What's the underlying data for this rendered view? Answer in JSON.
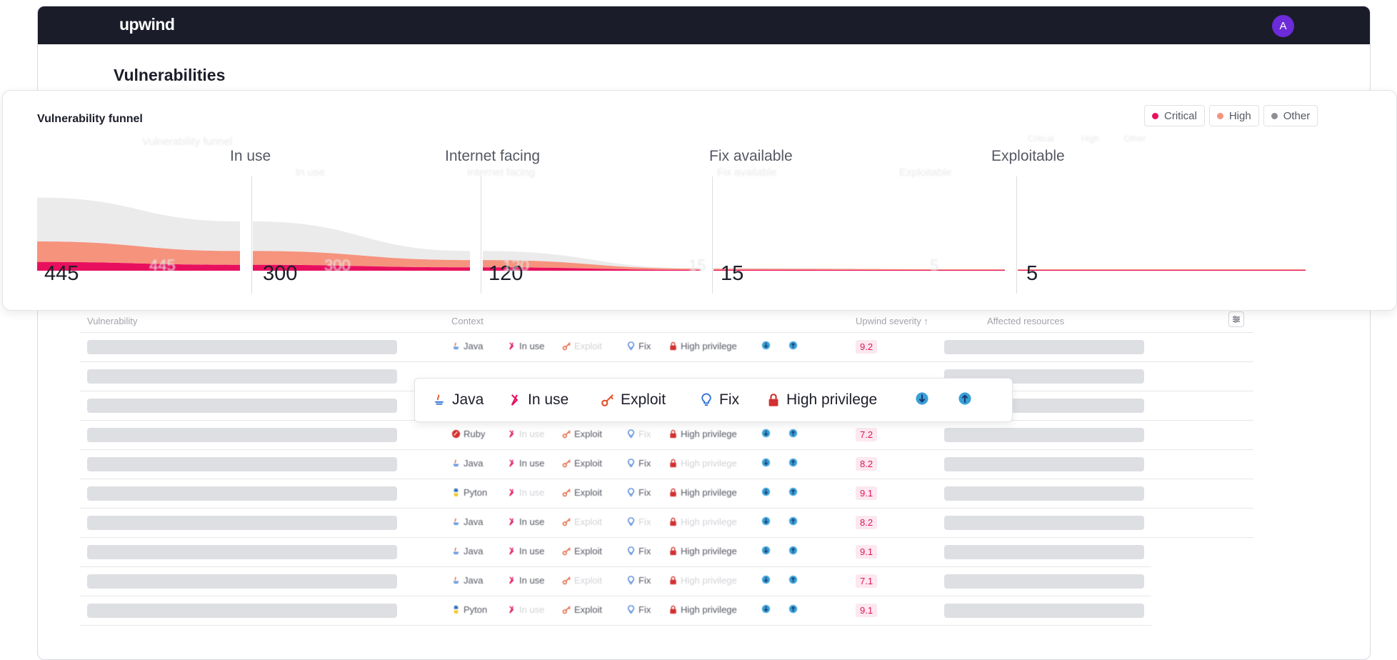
{
  "app": {
    "logo": "upwind",
    "avatar_initial": "A",
    "page_title": "Vulnerabilities"
  },
  "funnel": {
    "title": "Vulnerability funnel",
    "ghost_title": "Vulnerability funnel",
    "legend": [
      {
        "label": "Critical",
        "color": "#e8105e"
      },
      {
        "label": "High",
        "color": "#f6937d"
      },
      {
        "label": "Other",
        "color": "#8e8f96"
      }
    ],
    "stages": [
      {
        "label": "",
        "count": "445"
      },
      {
        "label": "In use",
        "count": "300"
      },
      {
        "label": "Internet facing",
        "count": "120"
      },
      {
        "label": "Fix available",
        "count": "15"
      },
      {
        "label": "Exploitable",
        "count": "5"
      }
    ],
    "ghost_legend": [
      "Critical",
      "High",
      "Other"
    ],
    "ghost_stages": [
      "In use",
      "Internet facing",
      "Fix available",
      "Exploitable"
    ],
    "ghost_counts": [
      "445",
      "300",
      "120",
      "15",
      "5"
    ]
  },
  "table": {
    "headers": {
      "vulnerability": "Vulnerability",
      "context": "Context",
      "severity": "Upwind severity ↑",
      "resources": "Affected resources"
    },
    "rows": [
      {
        "lang": "Java",
        "lang_icon": "java-icon",
        "in_use": true,
        "exploit": false,
        "fix": true,
        "priv": true,
        "net1": true,
        "net2": false,
        "severity": "9.2"
      },
      {
        "lang": "",
        "lang_icon": "",
        "in_use": false,
        "exploit": false,
        "fix": false,
        "priv": false,
        "net1": false,
        "net2": false,
        "severity": ""
      },
      {
        "lang": "",
        "lang_icon": "",
        "in_use": false,
        "exploit": false,
        "fix": false,
        "priv": false,
        "net1": false,
        "net2": false,
        "severity": ""
      },
      {
        "lang": "Ruby",
        "lang_icon": "ruby-icon",
        "in_use": false,
        "exploit": true,
        "fix": false,
        "priv": true,
        "net1": true,
        "net2": true,
        "severity": "7.2"
      },
      {
        "lang": "Java",
        "lang_icon": "java-icon",
        "in_use": true,
        "exploit": true,
        "fix": true,
        "priv": false,
        "net1": false,
        "net2": false,
        "severity": "8.2"
      },
      {
        "lang": "Pyton",
        "lang_icon": "python-icon",
        "in_use": false,
        "exploit": true,
        "fix": true,
        "priv": true,
        "net1": false,
        "net2": true,
        "severity": "9.1"
      },
      {
        "lang": "Java",
        "lang_icon": "java-icon",
        "in_use": true,
        "exploit": false,
        "fix": false,
        "priv": false,
        "net1": false,
        "net2": true,
        "severity": "8.2"
      },
      {
        "lang": "Java",
        "lang_icon": "java-icon",
        "in_use": true,
        "exploit": true,
        "fix": true,
        "priv": true,
        "net1": true,
        "net2": true,
        "severity": "9.1"
      },
      {
        "lang": "Java",
        "lang_icon": "java-icon",
        "in_use": true,
        "exploit": false,
        "fix": true,
        "priv": false,
        "net1": true,
        "net2": false,
        "severity": "7.1"
      },
      {
        "lang": "Pyton",
        "lang_icon": "python-icon",
        "in_use": false,
        "exploit": true,
        "fix": true,
        "priv": true,
        "net1": false,
        "net2": true,
        "severity": "9.1"
      }
    ],
    "labels": {
      "in_use": "In use",
      "exploit": "Exploit",
      "fix": "Fix",
      "priv": "High privilege"
    }
  },
  "popover": {
    "items": [
      {
        "label": "Java",
        "icon": "java-icon"
      },
      {
        "label": "In use",
        "icon": "in-use-icon"
      },
      {
        "label": "Exploit",
        "icon": "exploit-key-icon"
      },
      {
        "label": "Fix",
        "icon": "fix-bulb-icon"
      },
      {
        "label": "High privilege",
        "icon": "lock-icon"
      },
      {
        "label": "",
        "icon": "globe-down-icon"
      },
      {
        "label": "",
        "icon": "globe-up-icon"
      }
    ]
  },
  "colors": {
    "critical": "#e8105e",
    "high": "#f6937d",
    "other": "#ebebec",
    "topbar": "#1a1c29"
  }
}
